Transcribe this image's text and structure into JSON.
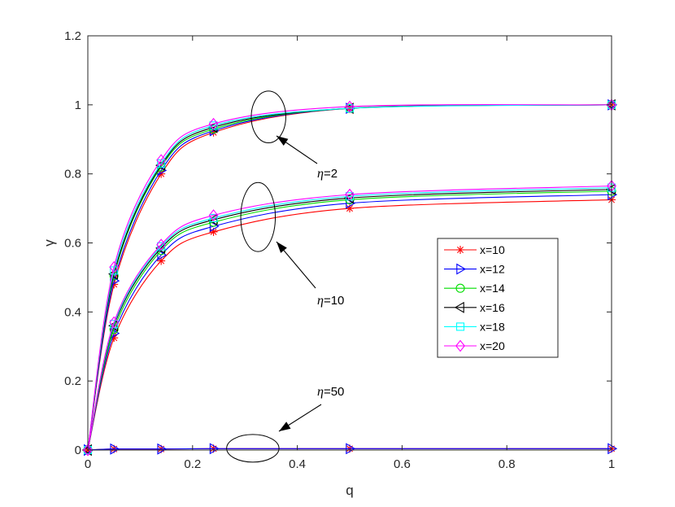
{
  "chart_data": {
    "type": "line",
    "xlabel": "q",
    "ylabel": "γ",
    "xlim": [
      0,
      1
    ],
    "ylim": [
      0,
      1.2
    ],
    "xticks": [
      "0",
      "0.2",
      "0.4",
      "0.6",
      "0.8",
      "1"
    ],
    "yticks": [
      "0",
      "0.2",
      "0.4",
      "0.6",
      "0.8",
      "1",
      "1.2"
    ],
    "grid": false,
    "legend_position": "right",
    "x": [
      0,
      0.05,
      0.14,
      0.24,
      0.5,
      1
    ],
    "series": [
      {
        "name": "x=10",
        "color": "#ff0000",
        "marker": "asterisk",
        "groups": {
          "eta2": [
            0,
            0.48,
            0.8,
            0.92,
            0.99,
            1.0
          ],
          "eta10": [
            0,
            0.325,
            0.548,
            0.632,
            0.7,
            0.725
          ],
          "eta50": [
            0,
            0.003,
            0.003,
            0.004,
            0.004,
            0.004
          ]
        }
      },
      {
        "name": "x=12",
        "color": "#0000ff",
        "marker": "triangle-right",
        "groups": {
          "eta2": [
            0,
            0.49,
            0.81,
            0.925,
            0.99,
            1.0
          ],
          "eta10": [
            0,
            0.338,
            0.565,
            0.648,
            0.715,
            0.74
          ],
          "eta50": [
            0,
            0.003,
            0.003,
            0.004,
            0.004,
            0.004
          ]
        }
      },
      {
        "name": "x=14",
        "color": "#00dd00",
        "marker": "circle",
        "groups": {
          "eta2": [
            0,
            0.505,
            0.82,
            0.93,
            0.99,
            1.0
          ],
          "eta10": [
            0,
            0.35,
            0.578,
            0.66,
            0.725,
            0.75
          ]
        }
      },
      {
        "name": "x=16",
        "color": "#000000",
        "marker": "triangle-left",
        "groups": {
          "eta2": [
            0,
            0.51,
            0.825,
            0.935,
            0.99,
            1.0
          ],
          "eta10": [
            0,
            0.36,
            0.585,
            0.667,
            0.73,
            0.755
          ]
        }
      },
      {
        "name": "x=18",
        "color": "#00ffff",
        "marker": "square",
        "groups": {
          "eta2": [
            0,
            0.52,
            0.83,
            0.94,
            0.99,
            1.0
          ],
          "eta10": [
            0,
            0.365,
            0.59,
            0.672,
            0.735,
            0.76
          ]
        }
      },
      {
        "name": "x=20",
        "color": "#ff00ff",
        "marker": "diamond",
        "groups": {
          "eta2": [
            0,
            0.53,
            0.84,
            0.945,
            0.995,
            1.0
          ],
          "eta10": [
            0,
            0.37,
            0.595,
            0.68,
            0.74,
            0.765
          ]
        }
      }
    ],
    "annotations": [
      {
        "greek": "η",
        "text": "=2",
        "ellipse_center": [
          0.345,
          0.965
        ],
        "ellipse_radius": [
          0.033,
          0.075
        ],
        "arrow_to": [
          0.36,
          0.905
        ]
      },
      {
        "greek": "η",
        "text": "=10",
        "ellipse_center": [
          0.325,
          0.675
        ],
        "ellipse_radius": [
          0.033,
          0.1
        ],
        "arrow_to": [
          0.36,
          0.595
        ]
      },
      {
        "greek": "η",
        "text": "=50",
        "ellipse_center": [
          0.315,
          0.005
        ],
        "ellipse_radius": [
          0.05,
          0.04
        ],
        "arrow_to": [
          0.36,
          0.05
        ]
      }
    ]
  }
}
